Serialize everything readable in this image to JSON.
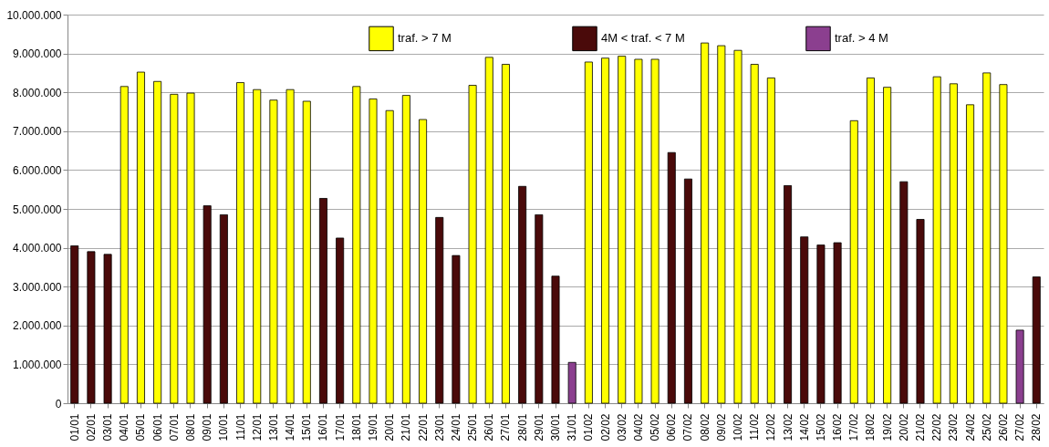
{
  "chart_data": {
    "type": "bar",
    "stacked": true,
    "categories": [
      "01/01",
      "02/01",
      "03/01",
      "04/01",
      "05/01",
      "06/01",
      "07/01",
      "08/01",
      "09/01",
      "10/01",
      "11/01",
      "12/01",
      "13/01",
      "14/01",
      "15/01",
      "16/01",
      "17/01",
      "18/01",
      "19/01",
      "20/01",
      "21/01",
      "22/01",
      "23/01",
      "24/01",
      "25/01",
      "26/01",
      "27/01",
      "28/01",
      "29/01",
      "30/01",
      "31/01",
      "01/02",
      "02/02",
      "03/02",
      "04/02",
      "05/02",
      "06/02",
      "07/02",
      "08/02",
      "09/02",
      "10/02",
      "11/02",
      "12/02",
      "13/02",
      "14/02",
      "15/02",
      "16/02",
      "17/02",
      "18/02",
      "19/02",
      "20/02",
      "21/02",
      "22/02",
      "23/02",
      "24/02",
      "25/02",
      "26/02",
      "27/02",
      "28/02"
    ],
    "series": [
      {
        "name": "traf. > 7 M",
        "color": "#ffff00",
        "values": [
          null,
          null,
          null,
          8150000,
          8520000,
          8280000,
          7950000,
          7980000,
          null,
          null,
          8250000,
          8070000,
          7800000,
          8070000,
          7770000,
          null,
          null,
          8150000,
          7830000,
          7530000,
          7920000,
          7300000,
          null,
          null,
          8180000,
          8900000,
          8720000,
          null,
          null,
          null,
          null,
          8780000,
          8880000,
          8930000,
          8850000,
          8850000,
          null,
          null,
          9270000,
          9200000,
          9080000,
          8720000,
          8370000,
          null,
          null,
          null,
          null,
          7270000,
          8370000,
          8130000,
          null,
          null,
          8400000,
          8220000,
          7680000,
          8500000,
          8200000,
          null,
          null
        ]
      },
      {
        "name": "4M < traf. < 7 M",
        "color": "#4a0a0a",
        "values": [
          4050000,
          3900000,
          3830000,
          null,
          null,
          null,
          null,
          null,
          5080000,
          4850000,
          null,
          null,
          null,
          null,
          null,
          5270000,
          4250000,
          null,
          null,
          null,
          null,
          null,
          4780000,
          3800000,
          null,
          null,
          null,
          5580000,
          4850000,
          3270000,
          null,
          null,
          null,
          null,
          null,
          null,
          6450000,
          5770000,
          null,
          null,
          null,
          null,
          null,
          5600000,
          4280000,
          4070000,
          4130000,
          null,
          null,
          null,
          5700000,
          4730000,
          null,
          null,
          null,
          null,
          null,
          null,
          3250000
        ]
      },
      {
        "name": "traf. > 4 M",
        "color": "#8b3f8f",
        "values": [
          null,
          null,
          null,
          null,
          null,
          null,
          null,
          null,
          null,
          null,
          null,
          null,
          null,
          null,
          null,
          null,
          null,
          null,
          null,
          null,
          null,
          null,
          null,
          null,
          null,
          null,
          null,
          null,
          null,
          null,
          1050000,
          null,
          null,
          null,
          null,
          null,
          null,
          null,
          null,
          null,
          null,
          null,
          null,
          null,
          null,
          null,
          null,
          null,
          null,
          null,
          null,
          null,
          null,
          null,
          null,
          null,
          null,
          1880000,
          null
        ]
      }
    ],
    "ylim": [
      0,
      10000000
    ],
    "yticks": [
      0,
      {
        "value": 1000000,
        "label": "1.000.000"
      },
      {
        "value": 2000000,
        "label": "2.000.000"
      },
      {
        "value": 3000000,
        "label": "3.000.000"
      },
      {
        "value": 4000000,
        "label": "4.000.000"
      },
      {
        "value": 5000000,
        "label": "5.000.000"
      },
      {
        "value": 6000000,
        "label": "6.000.000"
      },
      {
        "value": 7000000,
        "label": "7.000.000"
      },
      {
        "value": 8000000,
        "label": "8.000.000"
      },
      {
        "value": 9000000,
        "label": "9.000.000"
      },
      {
        "value": 10000000,
        "label": "10.000.000"
      }
    ],
    "grid": "y",
    "legend": "top"
  }
}
